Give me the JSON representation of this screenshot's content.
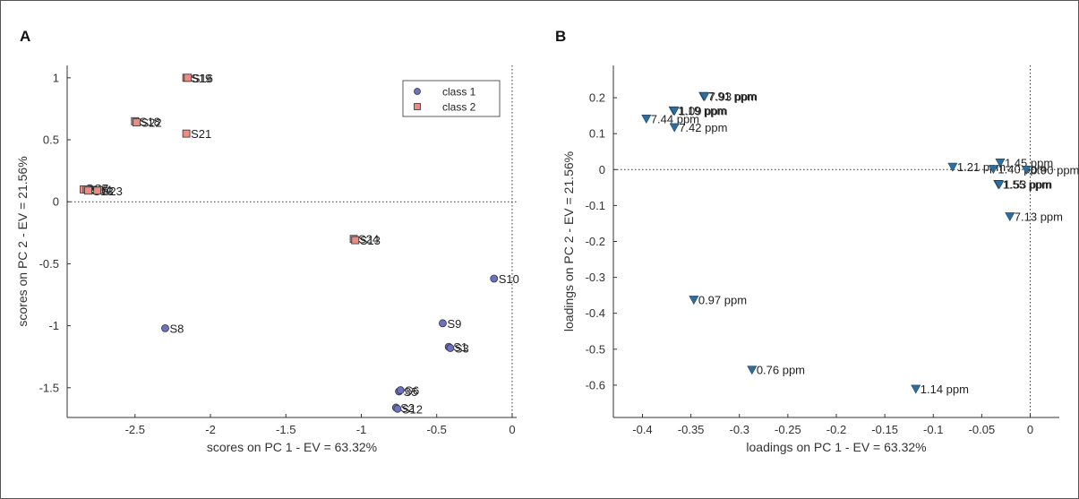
{
  "colors": {
    "class1": "#6b71c3",
    "class2": "#ec8a84",
    "loadings": "#2e6e9e",
    "axis": "#333333",
    "zeroline": "#333333"
  },
  "chart_data": [
    {
      "panel": "A",
      "type": "scatter",
      "title": "",
      "xlabel": "scores on PC 1 - EV = 63.32%",
      "ylabel": "scores on PC 2 - EV = 21.56%",
      "xlim": [
        -2.95,
        0.03
      ],
      "ylim": [
        -1.74,
        1.1
      ],
      "xticks": [
        -2.5,
        -2,
        -1.5,
        -1,
        -0.5,
        0
      ],
      "xticklabels": [
        "-2.5",
        "-2",
        "-1.5",
        "-1",
        "-0.5",
        "0"
      ],
      "yticks": [
        -1.5,
        -1,
        -0.5,
        0,
        0.5,
        1
      ],
      "yticklabels": [
        "-1.5",
        "-1",
        "-0.5",
        "0",
        "0.5",
        "1"
      ],
      "zero_lines": true,
      "legend": {
        "placement": "top-right",
        "entries": [
          "class 1",
          "class 2"
        ]
      },
      "series": [
        {
          "name": "class 1",
          "marker": "circle",
          "points": [
            {
              "x": -0.12,
              "y": -0.62,
              "label": "S10"
            },
            {
              "x": -0.46,
              "y": -0.98,
              "label": "S9"
            },
            {
              "x": -0.42,
              "y": -1.17,
              "label": "S1"
            },
            {
              "x": -0.41,
              "y": -1.18,
              "label": "S3"
            },
            {
              "x": -2.3,
              "y": -1.02,
              "label": "S8"
            },
            {
              "x": -0.75,
              "y": -1.53,
              "label": "S5"
            },
            {
              "x": -0.74,
              "y": -1.52,
              "label": "S6"
            },
            {
              "x": -0.77,
              "y": -1.66,
              "label": "S2"
            },
            {
              "x": -0.76,
              "y": -1.67,
              "label": "S12"
            },
            {
              "x": -2.8,
              "y": 0.11,
              "label": "S7"
            }
          ]
        },
        {
          "name": "class 2",
          "marker": "square",
          "points": [
            {
              "x": -2.16,
              "y": 1.0,
              "label": "S19"
            },
            {
              "x": -2.15,
              "y": 1.0,
              "label": "S16"
            },
            {
              "x": -2.5,
              "y": 0.65,
              "label": "S18"
            },
            {
              "x": -2.49,
              "y": 0.64,
              "label": "S22"
            },
            {
              "x": -2.16,
              "y": 0.55,
              "label": "S21"
            },
            {
              "x": -2.84,
              "y": 0.1,
              "label": "S15"
            },
            {
              "x": -2.82,
              "y": 0.1,
              "label": "S14"
            },
            {
              "x": -2.81,
              "y": 0.09,
              "label": "S13"
            },
            {
              "x": -2.75,
              "y": 0.09,
              "label": "S23"
            },
            {
              "x": -1.05,
              "y": -0.3,
              "label": "S24"
            },
            {
              "x": -1.04,
              "y": -0.31,
              "label": "S13"
            }
          ]
        }
      ]
    },
    {
      "panel": "B",
      "type": "scatter",
      "title": "",
      "xlabel": "loadings on PC 1 - EV = 63.32%",
      "ylabel": "loadings on PC 2 - EV = 21.56%",
      "xlim": [
        -0.43,
        0.03
      ],
      "ylim": [
        -0.69,
        0.29
      ],
      "xticks": [
        -0.4,
        -0.35,
        -0.3,
        -0.25,
        -0.2,
        -0.15,
        -0.1,
        -0.05,
        0
      ],
      "xticklabels": [
        "-0.4",
        "-0.35",
        "-0.3",
        "-0.25",
        "-0.2",
        "-0.15",
        "-0.1",
        "-0.05",
        "0"
      ],
      "yticks": [
        -0.6,
        -0.5,
        -0.4,
        -0.3,
        -0.2,
        -0.1,
        0,
        0.1,
        0.2
      ],
      "yticklabels": [
        "-0.6",
        "-0.5",
        "-0.4",
        "-0.3",
        "-0.2",
        "-0.1",
        "0",
        "0.1",
        "0.2"
      ],
      "zero_lines": true,
      "series": [
        {
          "name": "",
          "marker": "triangle-down",
          "points": [
            {
              "x": -0.337,
              "y": 0.205,
              "label": "7.91 ppm"
            },
            {
              "x": -0.336,
              "y": 0.204,
              "label": "7.93 ppm"
            },
            {
              "x": -0.368,
              "y": 0.165,
              "label": "1.19 ppm"
            },
            {
              "x": -0.367,
              "y": 0.164,
              "label": "1.09 ppm"
            },
            {
              "x": -0.396,
              "y": 0.142,
              "label": "7.44 ppm"
            },
            {
              "x": -0.367,
              "y": 0.118,
              "label": "7.42 ppm"
            },
            {
              "x": -0.08,
              "y": 0.008,
              "label": "1.21 ppm"
            },
            {
              "x": -0.031,
              "y": 0.02,
              "label": "1.45 ppm"
            },
            {
              "x": -0.038,
              "y": 0.002,
              "label": "1.40 ppm"
            },
            {
              "x": -0.004,
              "y": 0.0,
              "label": "0.90 ppm"
            },
            {
              "x": -0.033,
              "y": -0.04,
              "label": "1.55 ppm"
            },
            {
              "x": -0.032,
              "y": -0.041,
              "label": "1.53 ppm"
            },
            {
              "x": -0.021,
              "y": -0.13,
              "label": "7.13 ppm"
            },
            {
              "x": -0.347,
              "y": -0.362,
              "label": "0.97 ppm"
            },
            {
              "x": -0.287,
              "y": -0.557,
              "label": "0.76 ppm"
            },
            {
              "x": -0.118,
              "y": -0.61,
              "label": "1.14 ppm"
            }
          ]
        }
      ]
    }
  ]
}
